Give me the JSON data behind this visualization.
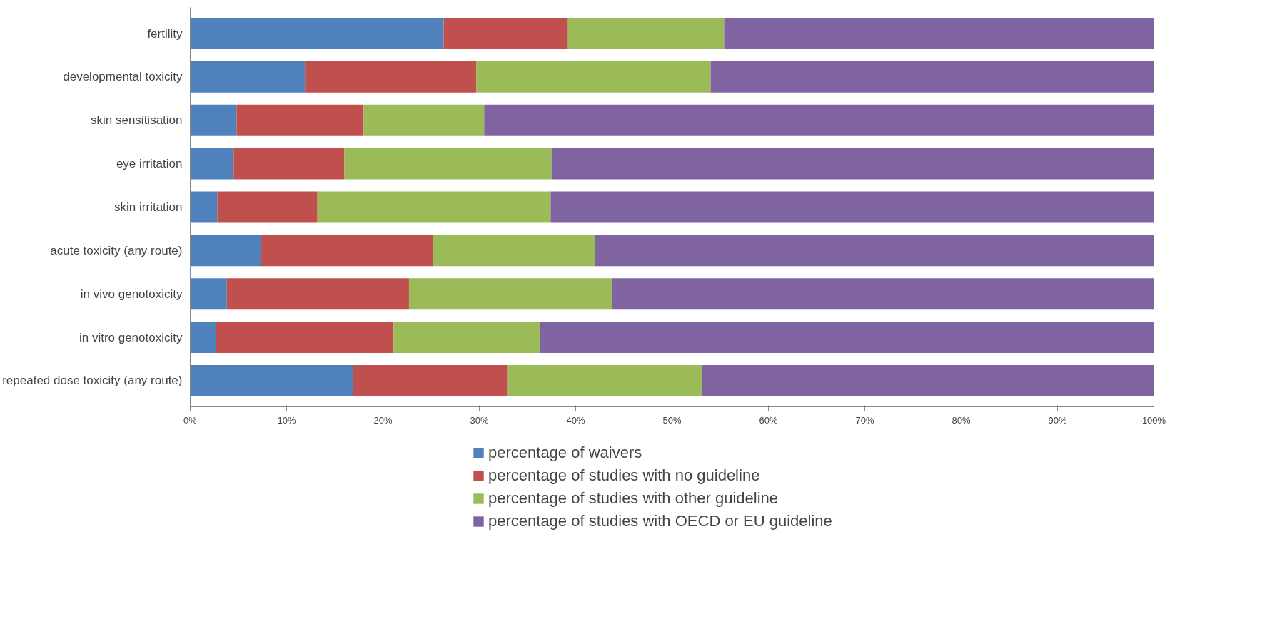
{
  "chart_data": {
    "type": "bar",
    "orientation": "horizontal",
    "stacked": true,
    "categories": [
      "fertility",
      "developmental toxicity",
      "skin sensitisation",
      "eye irritation",
      "skin irritation",
      "acute toxicity (any route)",
      "in vivo genotoxicity",
      "in vitro genotoxicity",
      "repeated dose toxicity (any route)"
    ],
    "series": [
      {
        "name": "percentage of waivers",
        "color": "#4f81bd",
        "values": [
          26.3,
          11.9,
          4.8,
          4.5,
          2.8,
          7.3,
          3.8,
          2.7,
          16.9
        ]
      },
      {
        "name": "percentage of studies with no guideline",
        "color": "#c0504d",
        "values": [
          12.9,
          17.8,
          13.2,
          11.5,
          10.4,
          17.9,
          18.9,
          18.4,
          16.0
        ]
      },
      {
        "name": "percentage of studies with other guideline",
        "color": "#9bbb59",
        "values": [
          16.2,
          24.3,
          12.5,
          21.5,
          24.2,
          16.8,
          21.1,
          15.2,
          20.2
        ]
      },
      {
        "name": "percentage of studies with OECD or EU guideline",
        "color": "#8064a2",
        "values": [
          44.6,
          46.0,
          69.5,
          62.5,
          62.6,
          58.0,
          56.2,
          63.7,
          46.9
        ]
      }
    ],
    "xlim": [
      0,
      100
    ],
    "xticks": [
      {
        "value": 0,
        "label": "0%"
      },
      {
        "value": 10,
        "label": "10%"
      },
      {
        "value": 20,
        "label": "20%"
      },
      {
        "value": 30,
        "label": "30%"
      },
      {
        "value": 40,
        "label": "40%"
      },
      {
        "value": 50,
        "label": "50%"
      },
      {
        "value": 60,
        "label": "60%"
      },
      {
        "value": 70,
        "label": "70%"
      },
      {
        "value": 80,
        "label": "80%"
      },
      {
        "value": 90,
        "label": "90%"
      },
      {
        "value": 100,
        "label": "100%"
      }
    ],
    "grid": false,
    "legend": "bottom"
  }
}
